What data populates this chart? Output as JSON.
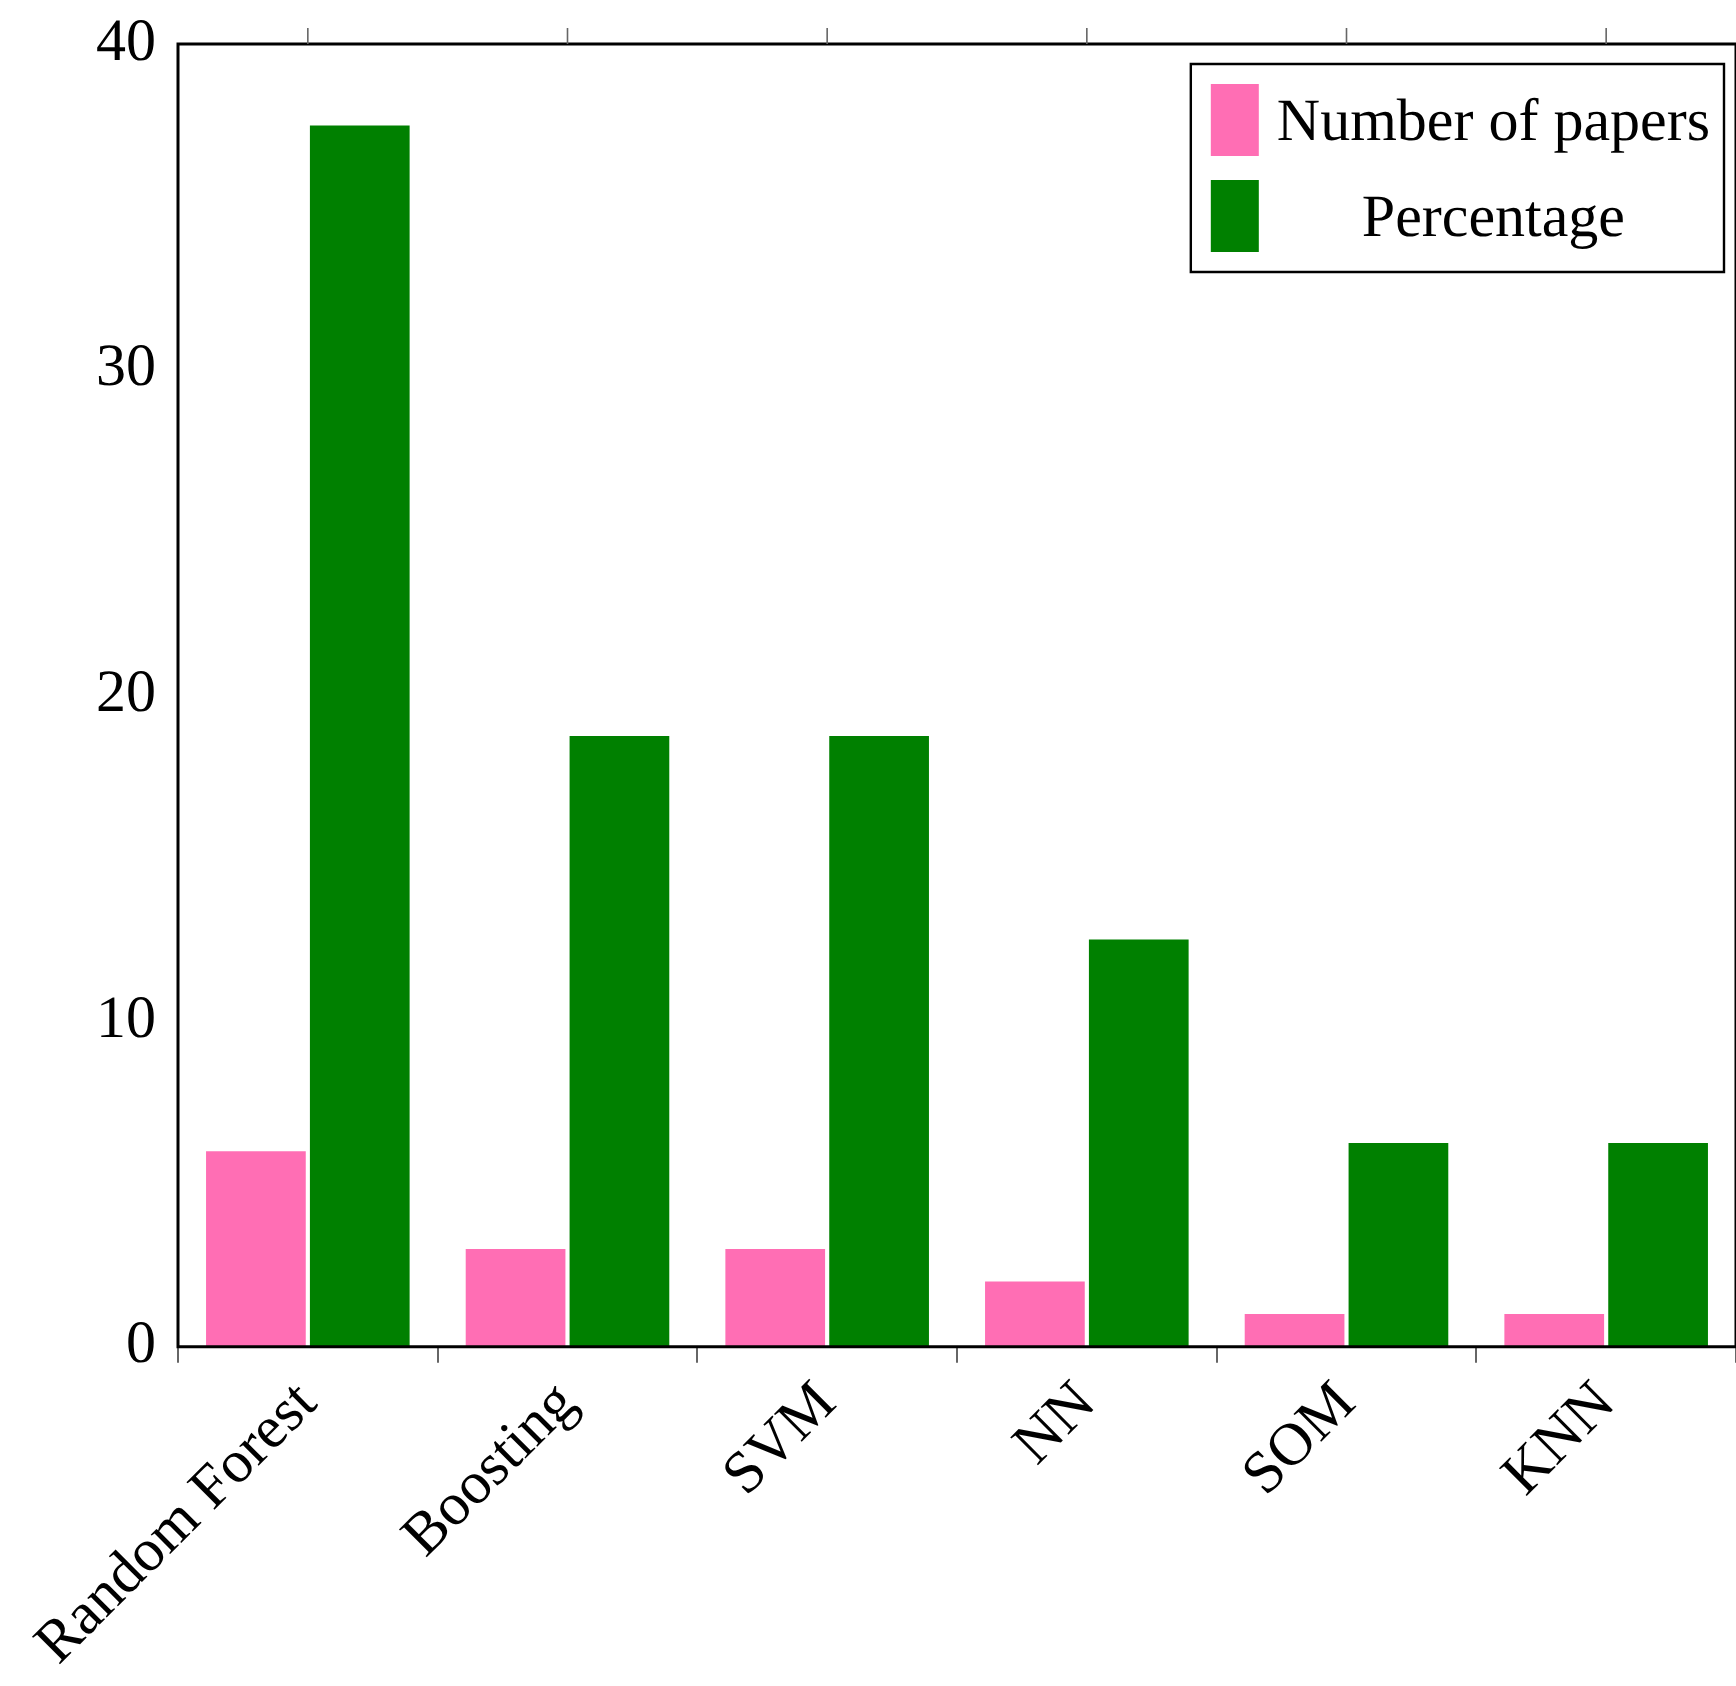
{
  "chart_data": {
    "type": "bar",
    "categories": [
      "Random Forest",
      "Boosting",
      "SVM",
      "NN",
      "SOM",
      "KNN"
    ],
    "series": [
      {
        "name": "Number of papers",
        "color": "#ff6eb4",
        "values": [
          6,
          3,
          3,
          2,
          1,
          1
        ]
      },
      {
        "name": "Percentage",
        "color": "#008000",
        "values": [
          37.5,
          18.75,
          18.75,
          12.5,
          6.25,
          6.25
        ]
      }
    ],
    "ylim": [
      0,
      40
    ],
    "yticks": [
      0,
      10,
      20,
      30,
      40
    ],
    "grid": false,
    "legend": "top right"
  }
}
